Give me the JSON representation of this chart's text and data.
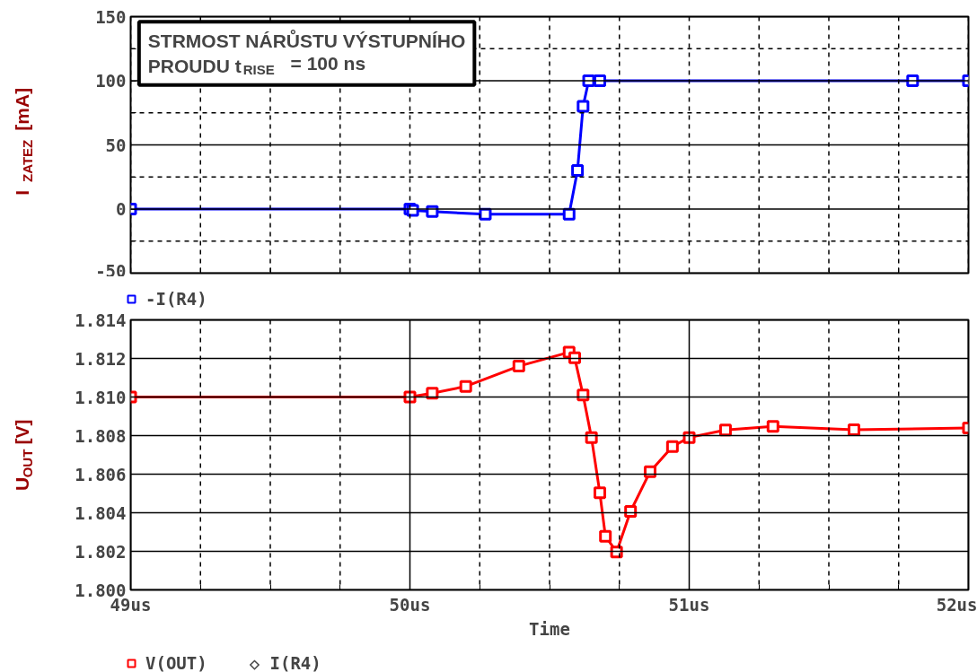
{
  "chart_data": [
    {
      "type": "line",
      "ylabel": "I$_{ZATEZ}$ [mA]",
      "annotations": [
        "STRMOST NÁRŮSTU VÝSTUPNÍHO\nPROUDU t$_{RISE}$  = 100 ns"
      ],
      "x": [
        49,
        50.0,
        50.01,
        50.08,
        50.27,
        50.57,
        50.6,
        50.62,
        50.64,
        50.68,
        51.8,
        52
      ],
      "series": [
        {
          "name": "-I(R4)",
          "color": "#0000ff",
          "values": [
            0,
            0,
            -1,
            -2,
            -4,
            -4,
            30,
            80,
            100,
            100,
            100,
            100
          ]
        }
      ],
      "xlim": [
        49,
        52
      ],
      "xticks": [
        {
          "value": 49,
          "label": null
        },
        {
          "value": 49.25,
          "label": null
        },
        {
          "value": 49.5,
          "label": null
        },
        {
          "value": 49.75,
          "label": null
        },
        {
          "value": 50,
          "label": null
        },
        {
          "value": 50.25,
          "label": null
        },
        {
          "value": 50.5,
          "label": null
        },
        {
          "value": 50.75,
          "label": null
        },
        {
          "value": 51,
          "label": null
        },
        {
          "value": 51.25,
          "label": null
        },
        {
          "value": 51.5,
          "label": null
        },
        {
          "value": 51.75,
          "label": null
        },
        {
          "value": 52,
          "label": null
        }
      ],
      "ylim": [
        -50,
        150
      ],
      "yticks": [
        -50,
        {
          "value": -25,
          "label": null
        },
        0,
        {
          "value": 25,
          "label": null
        },
        50,
        {
          "value": 75,
          "label": null
        },
        100,
        {
          "value": 125,
          "label": null
        },
        150
      ],
      "tick_labels": "y",
      "grid": true,
      "legend": "bottom left",
      "marker": "square",
      "line_style": "solid"
    },
    {
      "type": "line",
      "xlabel": "Time",
      "ylabel": "U$_{OUT}$ [V]",
      "annotations": [
        "◇ I(R4)"
      ],
      "x": [
        49,
        50.0,
        50.08,
        50.2,
        50.39,
        50.57,
        50.59,
        50.62,
        50.65,
        50.68,
        50.7,
        50.74,
        50.79,
        50.86,
        50.94,
        51.0,
        51.13,
        51.3,
        51.59,
        52
      ],
      "series": [
        {
          "name": "V(OUT)",
          "color": "#ff0000",
          "values": [
            1.81,
            1.81,
            1.8102,
            1.81055,
            1.8116,
            1.81232,
            1.81203,
            1.8101,
            1.8079,
            1.80503,
            1.80278,
            1.80197,
            1.80407,
            1.80613,
            1.80743,
            1.8079,
            1.80829,
            1.80848,
            1.8083,
            1.8084
          ]
        }
      ],
      "xlim": [
        49,
        52
      ],
      "xticks": [
        {
          "value": 49,
          "label": "49us"
        },
        {
          "value": 49.25,
          "label": null
        },
        {
          "value": 49.5,
          "label": null
        },
        {
          "value": 49.75,
          "label": null
        },
        {
          "value": 50,
          "label": "50us"
        },
        {
          "value": 50.25,
          "label": null
        },
        {
          "value": 50.5,
          "label": null
        },
        {
          "value": 50.75,
          "label": null
        },
        {
          "value": 51,
          "label": "51us"
        },
        {
          "value": 51.25,
          "label": null
        },
        {
          "value": 51.5,
          "label": null
        },
        {
          "value": 51.75,
          "label": null
        },
        {
          "value": 52,
          "label": "52us"
        }
      ],
      "ylim": [
        1.8,
        1.814
      ],
      "yticks": [
        {
          "value": 1.8,
          "label": "1.800"
        },
        {
          "value": 1.802,
          "label": "1.802"
        },
        {
          "value": 1.804,
          "label": "1.804"
        },
        {
          "value": 1.806,
          "label": "1.806"
        },
        {
          "value": 1.808,
          "label": "1.808"
        },
        {
          "value": 1.81,
          "label": "1.810"
        },
        {
          "value": 1.812,
          "label": "1.812"
        },
        {
          "value": 1.814,
          "label": "1.814"
        }
      ],
      "grid": true,
      "legend": "bottom left",
      "marker": "square",
      "line_style": "solid"
    }
  ]
}
